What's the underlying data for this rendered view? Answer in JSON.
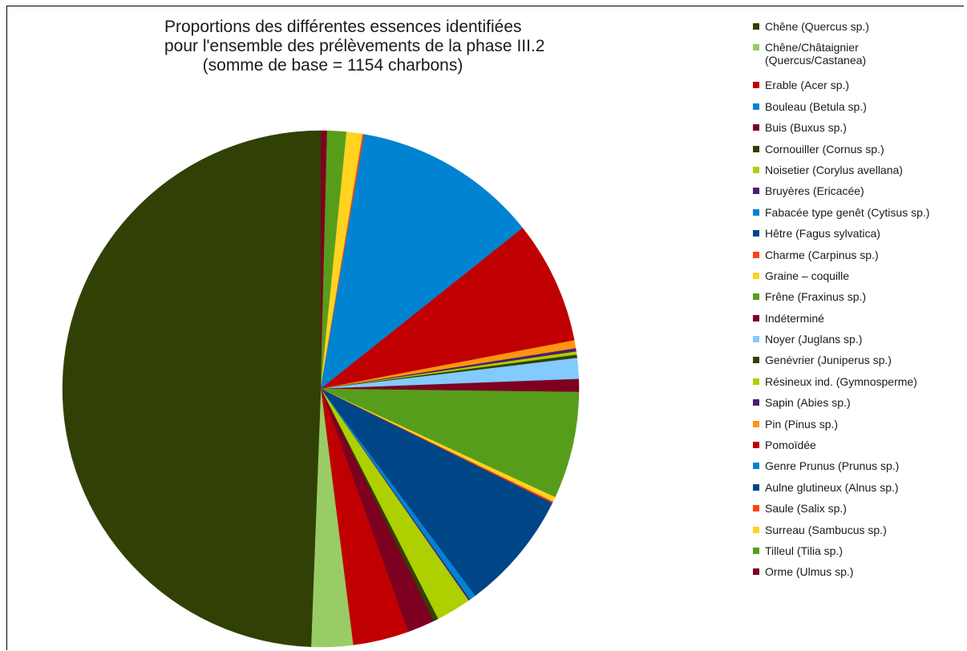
{
  "chart_data": {
    "type": "pie",
    "title": "Proportions des différentes essences identifiées pour l'ensemble des prélèvements de la phase III.2 (somme de base = 1154 charbons)",
    "title_lines": [
      "Proportions des différentes essences identifiées",
      "pour l'ensemble des prélèvements de la phase III.2",
      "(somme de base = 1154 charbons)"
    ],
    "legend_position": "right",
    "legend": [
      {
        "label": "Chêne (Quercus sp.)",
        "color": "#314004"
      },
      {
        "label": "Chêne/Châtaignier\n(Quercus/Castanea)",
        "color": "#99cc66"
      },
      {
        "label": "Erable (Acer sp.)",
        "color": "#c00000"
      },
      {
        "label": "Bouleau (Betula sp.)",
        "color": "#0084d1"
      },
      {
        "label": "Buis (Buxus sp.)",
        "color": "#7e0021"
      },
      {
        "label": "Cornouiller (Cornus sp.)",
        "color": "#314004"
      },
      {
        "label": "Noisetier (Corylus avellana)",
        "color": "#aecf00"
      },
      {
        "label": "Bruyères (Ericacée)",
        "color": "#4b1f6f"
      },
      {
        "label": " Fabacée type genêt  (Cytisus sp.)",
        "color": "#0084d1"
      },
      {
        "label": "Hêtre (Fagus sylvatica)",
        "color": "#004586"
      },
      {
        "label": "Charme (Carpinus sp.)",
        "color": "#ff420e"
      },
      {
        "label": "Graine – coquille",
        "color": "#ffd320"
      },
      {
        "label": "Frêne (Fraxinus sp.)",
        "color": "#579d1c"
      },
      {
        "label": "Indéterminé",
        "color": "#7e0021"
      },
      {
        "label": "Noyer (Juglans sp.)",
        "color": "#83caff"
      },
      {
        "label": "Genévrier (Juniperus sp.)",
        "color": "#314004"
      },
      {
        "label": "Résineux ind. (Gymnosperme)",
        "color": "#aecf00"
      },
      {
        "label": "Sapin (Abies sp.)",
        "color": "#4b1f6f"
      },
      {
        "label": "Pin (Pinus sp.)",
        "color": "#ff950e"
      },
      {
        "label": "Pomoïdée",
        "color": "#c00000"
      },
      {
        "label": "Genre Prunus (Prunus sp.)",
        "color": "#0084d1"
      },
      {
        "label": "Aulne glutineux (Alnus sp.)",
        "color": "#004586"
      },
      {
        "label": "Saule (Salix sp.)",
        "color": "#ff420e"
      },
      {
        "label": "Surreau (Sambucus sp.)",
        "color": "#ffd320"
      },
      {
        "label": "Tilleul (Tilia sp.)",
        "color": "#579d1c"
      },
      {
        "label": "Orme (Ulmus sp.)",
        "color": "#7e0021"
      }
    ],
    "slice_order": [
      "Orme (Ulmus sp.)",
      "Tilleul (Tilia sp.)",
      "Surreau (Sambucus sp.)",
      "Saule (Salix sp.)",
      "Aulne glutineux (Alnus sp.)",
      "Genre Prunus (Prunus sp.)",
      "Pomoïdée",
      "Pin (Pinus sp.)",
      "Sapin (Abies sp.)",
      "Résineux ind. (Gymnosperme)",
      "Genévrier (Juniperus sp.)",
      "Noyer (Juglans sp.)",
      "Indéterminé",
      "Frêne (Fraxinus sp.)",
      "Graine – coquille",
      "Charme (Carpinus sp.)",
      "Hêtre (Fagus sylvatica)",
      "Fabacée type genêt  (Cytisus sp.)",
      "Bruyères (Ericacée)",
      "Noisetier (Corylus avellana)",
      "Cornouiller (Cornus sp.)",
      "Buis (Buxus sp.)",
      "Bouleau (Betula sp.)",
      "Erable (Acer sp.)",
      "Chêne/Châtaignier (Quercus/Castanea)",
      "Chêne (Quercus sp.)"
    ],
    "slice_percent": [
      0.4,
      1.2,
      1.0,
      0.1,
      0.0,
      11.6,
      7.7,
      0.5,
      0.2,
      0.2,
      0.2,
      1.3,
      0.8,
      6.7,
      0.3,
      0.1,
      7.5,
      0.4,
      0.1,
      2.2,
      0.3,
      1.7,
      0.0,
      3.5,
      2.6,
      49.4
    ],
    "slice_colors": [
      "#7e0021",
      "#579d1c",
      "#ffd320",
      "#ff420e",
      "#004586",
      "#0084d1",
      "#c00000",
      "#ff950e",
      "#4b1f6f",
      "#aecf00",
      "#314004",
      "#83caff",
      "#7e0021",
      "#579d1c",
      "#ffd320",
      "#ff420e",
      "#004586",
      "#0084d1",
      "#4b1f6f",
      "#aecf00",
      "#314004",
      "#7e0021",
      "#0084d1",
      "#c00000",
      "#99cc66",
      "#314004"
    ]
  }
}
